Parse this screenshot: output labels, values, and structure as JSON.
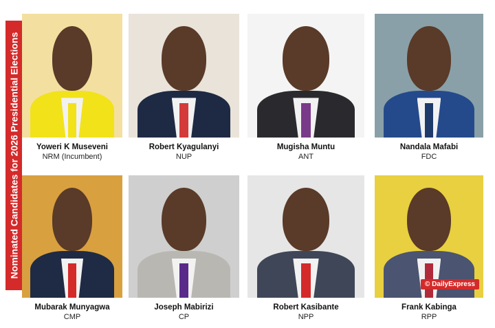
{
  "banner_title": "Nominated Candidates for 2026 Presidential Elections",
  "watermark": "© DailyExpress",
  "colors": {
    "accent": "#d42a2a"
  },
  "candidates": [
    {
      "name": "Yoweri K Museveni",
      "party": "NRM (Incumbent)"
    },
    {
      "name": "Robert Kyagulanyi",
      "party": "NUP"
    },
    {
      "name": "Mugisha Muntu",
      "party": "ANT"
    },
    {
      "name": "Nandala Mafabi",
      "party": "FDC"
    },
    {
      "name": "Mubarak Munyagwa",
      "party": "CMP"
    },
    {
      "name": "Joseph Mabirizi",
      "party": "CP"
    },
    {
      "name": "Robert Kasibante",
      "party": "NPP"
    },
    {
      "name": "Frank Kabinga",
      "party": "RPP"
    }
  ]
}
